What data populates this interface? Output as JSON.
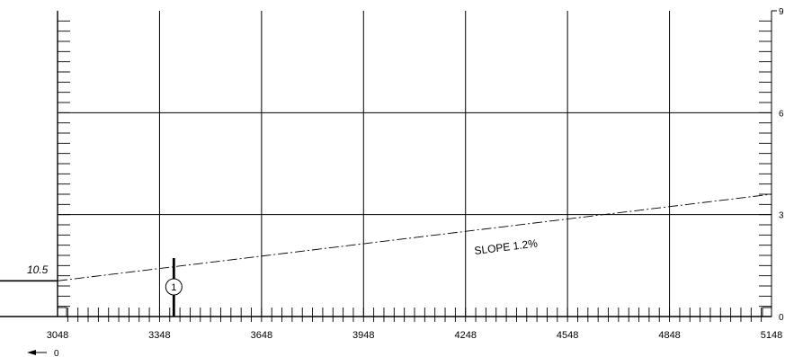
{
  "chart_data": {
    "type": "line",
    "title": "",
    "xlabel": "",
    "ylabel": "",
    "xlim": [
      3048,
      5148
    ],
    "ylim": [
      0,
      9
    ],
    "x_ticks": [
      "3048",
      "3348",
      "3648",
      "3948",
      "4248",
      "4548",
      "4848",
      "5148"
    ],
    "y_ticks": [
      "0",
      "3",
      "6",
      "9"
    ],
    "grid": true,
    "series": [
      {
        "label": "SLOPE 1.2%",
        "style": "dash-dot",
        "x": [
          3048,
          5148
        ],
        "y": [
          1.05,
          3.6
        ]
      }
    ],
    "annotations": {
      "left_level_label": "10.5",
      "left_level_value": 1.05,
      "marker_label": "1",
      "marker_x": 3390,
      "origin_arrow_label": "0"
    }
  }
}
